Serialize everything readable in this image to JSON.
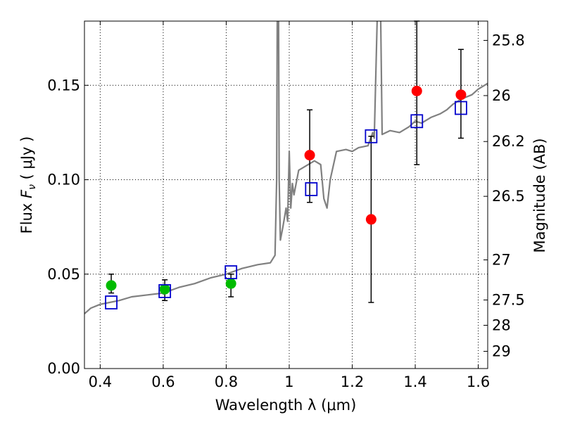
{
  "chart_data": {
    "type": "scatter",
    "xlabel": "Wavelength  λ (μm)",
    "ylabel_parts": {
      "pre": "Flux  ",
      "sym": "F",
      "sub": "ν",
      "post": "  ( μJy )"
    },
    "y2label": "Magnitude (AB)",
    "xlim": [
      0.35,
      1.63
    ],
    "ylim": [
      0.0,
      0.184
    ],
    "grid": true,
    "x_ticks": [
      {
        "v": 0.4,
        "label": "0.4"
      },
      {
        "v": 0.6,
        "label": "0.6"
      },
      {
        "v": 0.8,
        "label": "0.8"
      },
      {
        "v": 1.0,
        "label": "1"
      },
      {
        "v": 1.2,
        "label": "1.2"
      },
      {
        "v": 1.4,
        "label": "1.4"
      },
      {
        "v": 1.6,
        "label": "1.6"
      }
    ],
    "y_ticks": [
      {
        "v": 0.0,
        "label": "0.00"
      },
      {
        "v": 0.05,
        "label": "0.05"
      },
      {
        "v": 0.1,
        "label": "0.10"
      },
      {
        "v": 0.15,
        "label": "0.15"
      }
    ],
    "y2_ticks": [
      {
        "label": "25.8",
        "mag": 25.8
      },
      {
        "label": "26",
        "mag": 26.0
      },
      {
        "label": "26.2",
        "mag": 26.2
      },
      {
        "label": "26.5",
        "mag": 26.5
      },
      {
        "label": "27",
        "mag": 27.0
      },
      {
        "label": "27.5",
        "mag": 27.5
      },
      {
        "label": "28",
        "mag": 28.0
      },
      {
        "label": "29",
        "mag": 29.0
      }
    ],
    "colors": {
      "spectrum": "#808080",
      "optical": "#00bb00",
      "nir": "#ff0000",
      "model": "#0000cc",
      "grid": "#000000"
    },
    "series": [
      {
        "name": "",
        "kind": "line",
        "points": [
          [
            0.35,
            0.029
          ],
          [
            0.37,
            0.032
          ],
          [
            0.4,
            0.034
          ],
          [
            0.43,
            0.035
          ],
          [
            0.46,
            0.036
          ],
          [
            0.5,
            0.038
          ],
          [
            0.55,
            0.039
          ],
          [
            0.6,
            0.04
          ],
          [
            0.65,
            0.043
          ],
          [
            0.7,
            0.045
          ],
          [
            0.75,
            0.048
          ],
          [
            0.8,
            0.05
          ],
          [
            0.85,
            0.053
          ],
          [
            0.9,
            0.055
          ],
          [
            0.94,
            0.056
          ],
          [
            0.955,
            0.06
          ],
          [
            0.96,
            0.1
          ],
          [
            0.962,
            0.19
          ],
          [
            0.966,
            0.19
          ],
          [
            0.968,
            0.1
          ],
          [
            0.972,
            0.068
          ],
          [
            0.98,
            0.075
          ],
          [
            0.99,
            0.085
          ],
          [
            0.995,
            0.078
          ],
          [
            1.0,
            0.115
          ],
          [
            1.005,
            0.085
          ],
          [
            1.01,
            0.098
          ],
          [
            1.015,
            0.092
          ],
          [
            1.03,
            0.105
          ],
          [
            1.05,
            0.107
          ],
          [
            1.08,
            0.11
          ],
          [
            1.1,
            0.108
          ],
          [
            1.11,
            0.09
          ],
          [
            1.12,
            0.085
          ],
          [
            1.13,
            0.1
          ],
          [
            1.15,
            0.115
          ],
          [
            1.18,
            0.116
          ],
          [
            1.2,
            0.115
          ],
          [
            1.22,
            0.117
          ],
          [
            1.25,
            0.118
          ],
          [
            1.265,
            0.125
          ],
          [
            1.27,
            0.122
          ],
          [
            1.28,
            0.19
          ],
          [
            1.29,
            0.19
          ],
          [
            1.295,
            0.124
          ],
          [
            1.32,
            0.126
          ],
          [
            1.35,
            0.125
          ],
          [
            1.38,
            0.128
          ],
          [
            1.4,
            0.131
          ],
          [
            1.42,
            0.13
          ],
          [
            1.45,
            0.133
          ],
          [
            1.48,
            0.135
          ],
          [
            1.5,
            0.137
          ],
          [
            1.52,
            0.14
          ],
          [
            1.55,
            0.143
          ],
          [
            1.58,
            0.145
          ],
          [
            1.6,
            0.148
          ],
          [
            1.63,
            0.151
          ]
        ]
      },
      {
        "name": "",
        "kind": "errorbar",
        "color": "optical",
        "points": [
          {
            "x": 0.435,
            "y": 0.044,
            "lo": 0.04,
            "hi": 0.05
          },
          {
            "x": 0.605,
            "y": 0.042,
            "lo": 0.036,
            "hi": 0.047
          },
          {
            "x": 0.815,
            "y": 0.045,
            "lo": 0.038,
            "hi": 0.05
          }
        ]
      },
      {
        "name": "",
        "kind": "errorbar",
        "color": "nir",
        "points": [
          {
            "x": 1.065,
            "y": 0.113,
            "lo": 0.088,
            "hi": 0.137
          },
          {
            "x": 1.26,
            "y": 0.079,
            "lo": 0.035,
            "hi": 0.123
          },
          {
            "x": 1.405,
            "y": 0.147,
            "lo": 0.108,
            "hi": 0.184
          },
          {
            "x": 1.545,
            "y": 0.145,
            "lo": 0.122,
            "hi": 0.169
          }
        ]
      },
      {
        "name": "",
        "kind": "squares",
        "color": "model",
        "points": [
          [
            0.435,
            0.035
          ],
          [
            0.605,
            0.041
          ],
          [
            0.815,
            0.051
          ],
          [
            1.07,
            0.095
          ],
          [
            1.26,
            0.123
          ],
          [
            1.405,
            0.131
          ],
          [
            1.545,
            0.138
          ]
        ]
      }
    ]
  }
}
